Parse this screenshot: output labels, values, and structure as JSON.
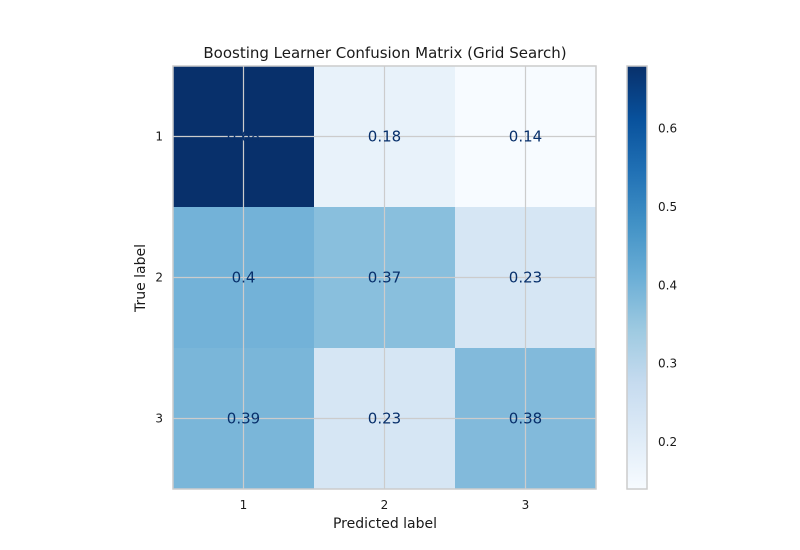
{
  "chart_data": {
    "type": "heatmap",
    "title": "Boosting Learner Confusion Matrix (Grid Search)",
    "xlabel": "Predicted label",
    "ylabel": "True label",
    "x_categories": [
      "1",
      "2",
      "3"
    ],
    "y_categories": [
      "1",
      "2",
      "3"
    ],
    "values": [
      [
        0.68,
        0.18,
        0.14
      ],
      [
        0.4,
        0.37,
        0.23
      ],
      [
        0.39,
        0.23,
        0.38
      ]
    ],
    "value_labels": [
      [
        "0.68",
        "0.18",
        "0.14"
      ],
      [
        "0.4",
        "0.37",
        "0.23"
      ],
      [
        "0.39",
        "0.23",
        "0.38"
      ]
    ],
    "colormap": "Blues",
    "colorbar": {
      "range": [
        0.14,
        0.68
      ],
      "ticks": [
        0.2,
        0.3,
        0.4,
        0.5,
        0.6
      ],
      "tick_labels": [
        "0.2",
        "0.3",
        "0.4",
        "0.5",
        "0.6"
      ]
    },
    "grid": true,
    "text_color": "#08306b"
  }
}
